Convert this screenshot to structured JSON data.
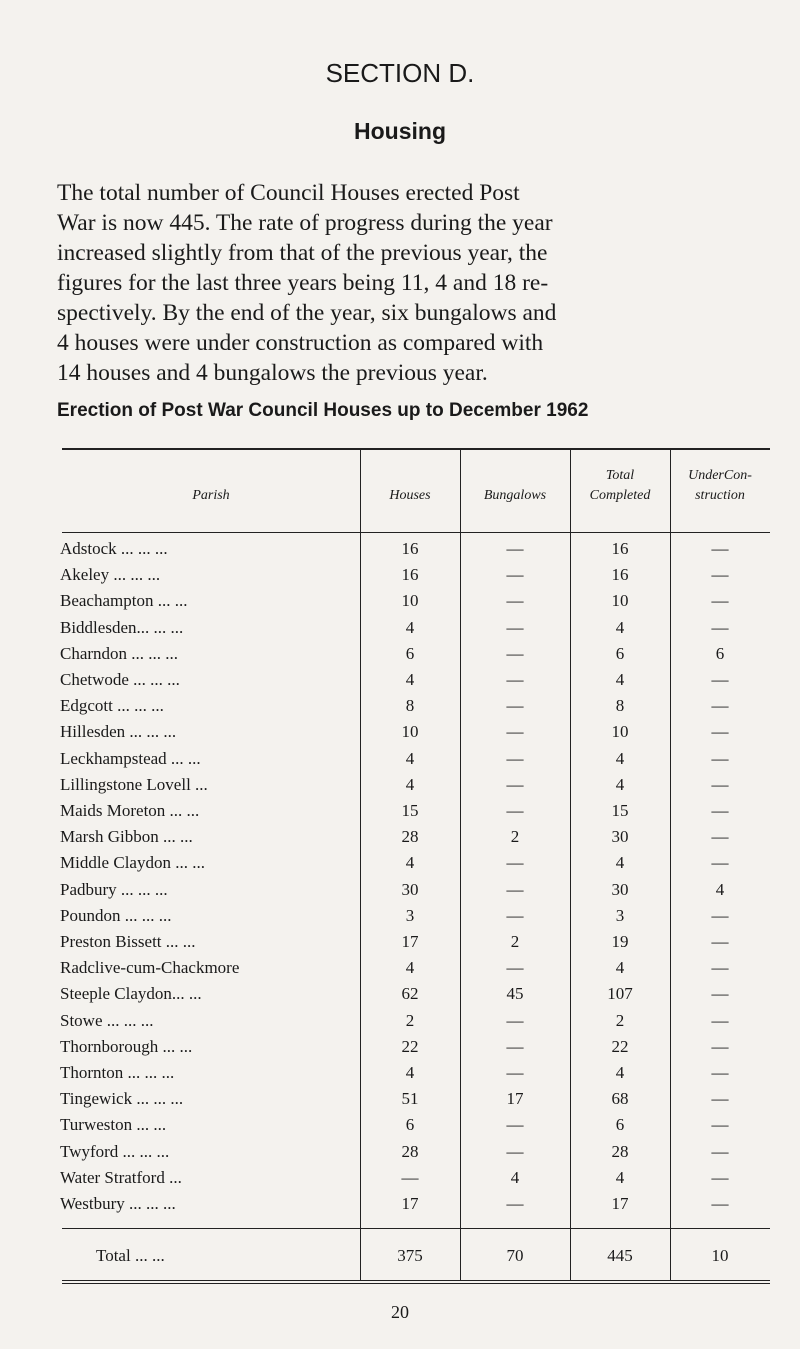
{
  "header": {
    "section": "SECTION D.",
    "title": "Housing"
  },
  "paragraph": [
    "The total number of Council Houses erected Post",
    "War is now 445. The rate of progress during the year",
    "increased slightly from that of the previous year, the",
    "figures for the last three years being 11, 4 and 18 re-",
    "spectively. By the end of the year, six bungalows and",
    "4 houses were under construction as compared with",
    "14 houses and 4 bungalows the previous year."
  ],
  "table": {
    "caption": "Erection of Post War Council Houses up to December 1962",
    "columns": [
      "Parish",
      "Houses",
      "Bungalows",
      "Total Completed",
      "UnderCon- struction"
    ],
    "rows": [
      [
        "Adstock ... ... ...",
        "16",
        "—",
        "16",
        "—"
      ],
      [
        "Akeley ... ... ...",
        "16",
        "—",
        "16",
        "—"
      ],
      [
        "Beachampton ... ...",
        "10",
        "—",
        "10",
        "—"
      ],
      [
        "Biddlesden... ... ...",
        "4",
        "—",
        "4",
        "—"
      ],
      [
        "Charndon ... ... ...",
        "6",
        "—",
        "6",
        "6"
      ],
      [
        "Chetwode ... ... ...",
        "4",
        "—",
        "4",
        "—"
      ],
      [
        "Edgcott ... ... ...",
        "8",
        "—",
        "8",
        "—"
      ],
      [
        "Hillesden ... ... ...",
        "10",
        "—",
        "10",
        "—"
      ],
      [
        "Leckhampstead ... ...",
        "4",
        "—",
        "4",
        "—"
      ],
      [
        "Lillingstone Lovell ...",
        "4",
        "—",
        "4",
        "—"
      ],
      [
        "Maids Moreton ... ...",
        "15",
        "—",
        "15",
        "—"
      ],
      [
        "Marsh Gibbon ... ...",
        "28",
        "2",
        "30",
        "—"
      ],
      [
        "Middle Claydon ... ...",
        "4",
        "—",
        "4",
        "—"
      ],
      [
        "Padbury ... ... ...",
        "30",
        "—",
        "30",
        "4"
      ],
      [
        "Poundon ... ... ...",
        "3",
        "—",
        "3",
        "—"
      ],
      [
        "Preston Bissett ... ...",
        "17",
        "2",
        "19",
        "—"
      ],
      [
        "Radclive-cum-Chackmore",
        "4",
        "—",
        "4",
        "—"
      ],
      [
        "Steeple Claydon... ...",
        "62",
        "45",
        "107",
        "—"
      ],
      [
        "Stowe ... ... ...",
        "2",
        "—",
        "2",
        "—"
      ],
      [
        "Thornborough ... ...",
        "22",
        "—",
        "22",
        "—"
      ],
      [
        "Thornton ... ... ...",
        "4",
        "—",
        "4",
        "—"
      ],
      [
        "Tingewick ... ... ...",
        "51",
        "17",
        "68",
        "—"
      ],
      [
        "Turweston ... ...",
        "6",
        "—",
        "6",
        "—"
      ],
      [
        "Twyford ... ... ...",
        "28",
        "—",
        "28",
        "—"
      ],
      [
        "Water Stratford ...",
        "—",
        "4",
        "4",
        "—"
      ],
      [
        "Westbury ... ... ...",
        "17",
        "—",
        "17",
        "—"
      ]
    ],
    "total": [
      "Total ... ...",
      "375",
      "70",
      "445",
      "10"
    ]
  },
  "page_number": "20"
}
